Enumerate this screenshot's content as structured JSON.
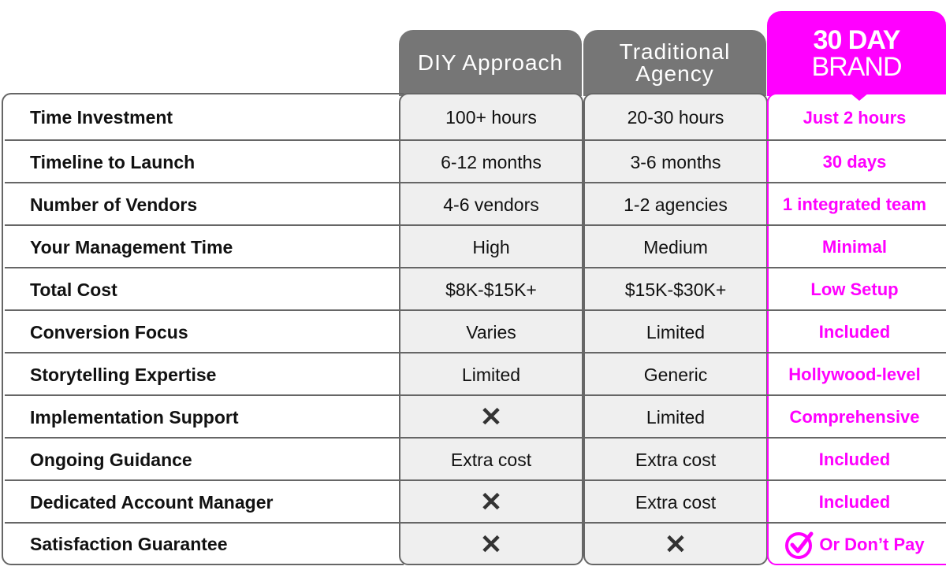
{
  "columns": {
    "diy": "DIY Approach",
    "trad_l1": "Traditional",
    "trad_l2": "Agency",
    "brand_l1": "30 DAY",
    "brand_l2": "BRAND"
  },
  "accent": "#ff00ff",
  "rows": [
    {
      "label": "Time Investment",
      "diy": "100+ hours",
      "trad": "20-30 hours",
      "brand": "Just 2 hours"
    },
    {
      "label": "Timeline to Launch",
      "diy": "6-12 months",
      "trad": "3-6 months",
      "brand": "30 days"
    },
    {
      "label": "Number of Vendors",
      "diy": "4-6 vendors",
      "trad": "1-2 agencies",
      "brand": "1 integrated team"
    },
    {
      "label": "Your Management Time",
      "diy": "High",
      "trad": "Medium",
      "brand": "Minimal"
    },
    {
      "label": "Total Cost",
      "diy": "$8K-$15K+",
      "trad": "$15K-$30K+",
      "brand": "Low Setup"
    },
    {
      "label": "Conversion Focus",
      "diy": "Varies",
      "trad": "Limited",
      "brand": "Included"
    },
    {
      "label": "Storytelling Expertise",
      "diy": "Limited",
      "trad": "Generic",
      "brand": "Hollywood-level"
    },
    {
      "label": "Implementation Support",
      "diy": null,
      "diy_icon": "x-icon",
      "trad": "Limited",
      "brand": "Comprehensive"
    },
    {
      "label": "Ongoing Guidance",
      "diy": "Extra cost",
      "trad": "Extra cost",
      "brand": "Included"
    },
    {
      "label": "Dedicated Account Manager",
      "diy": null,
      "diy_icon": "x-icon",
      "trad": "Extra cost",
      "brand": "Included"
    },
    {
      "label": "Satisfaction Guarantee",
      "diy": null,
      "diy_icon": "x-icon",
      "trad": null,
      "trad_icon": "x-icon",
      "brand": "Or Don’t Pay",
      "brand_icon": "check-circle-icon"
    }
  ]
}
